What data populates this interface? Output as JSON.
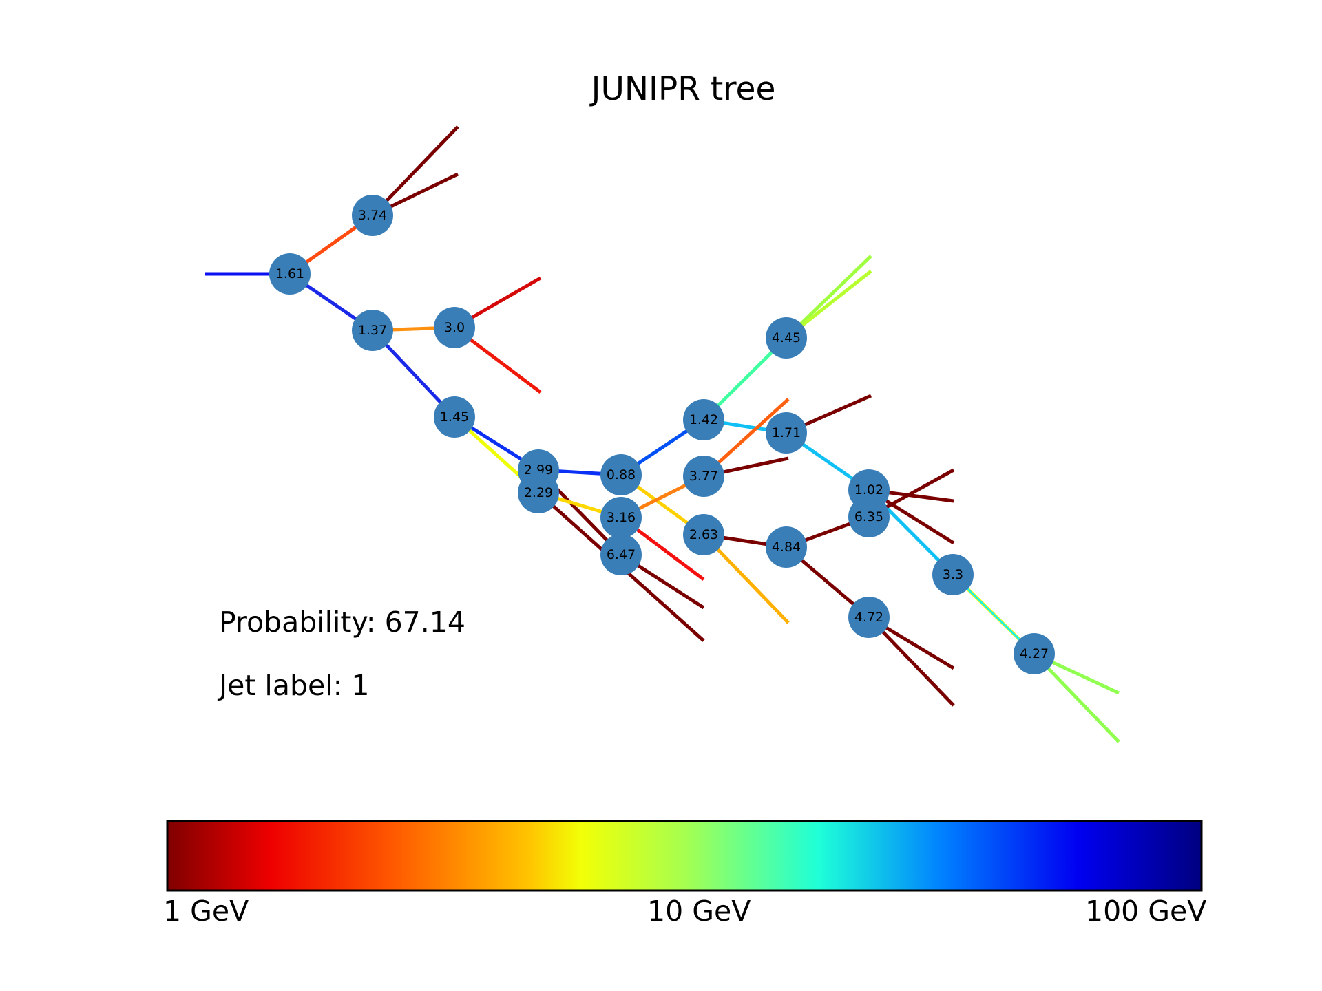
{
  "title": "JUNIPR tree",
  "probability_text": "Probability: 67.14",
  "jet_label_text": "Jet label: 1",
  "node_color": "#3a7eb8",
  "nodes": [
    {
      "id": "n161",
      "label": "1.61"
    },
    {
      "id": "n374",
      "label": "3.74"
    },
    {
      "id": "n137",
      "label": "1.37"
    },
    {
      "id": "n300",
      "label": "3.0"
    },
    {
      "id": "n145",
      "label": "1.45"
    },
    {
      "id": "n299",
      "label": "2.99"
    },
    {
      "id": "n229",
      "label": "2.29"
    },
    {
      "id": "n088",
      "label": "0.88"
    },
    {
      "id": "n316",
      "label": "3.16"
    },
    {
      "id": "n647",
      "label": "6.47"
    },
    {
      "id": "n142",
      "label": "1.42"
    },
    {
      "id": "n377",
      "label": "3.77"
    },
    {
      "id": "n263",
      "label": "2.63"
    },
    {
      "id": "n445",
      "label": "4.45"
    },
    {
      "id": "n171",
      "label": "1.71"
    },
    {
      "id": "n484",
      "label": "4.84"
    },
    {
      "id": "n102",
      "label": "1.02"
    },
    {
      "id": "n635",
      "label": "6.35"
    },
    {
      "id": "n472",
      "label": "4.72"
    },
    {
      "id": "n330",
      "label": "3.3"
    },
    {
      "id": "n427",
      "label": "4.27"
    }
  ],
  "colorbar": {
    "colormap": "jet-reversed",
    "scale": "log",
    "range_gev": [
      1,
      100
    ],
    "ticks": [
      "1 GeV",
      "10 GeV",
      "100 GeV"
    ]
  }
}
